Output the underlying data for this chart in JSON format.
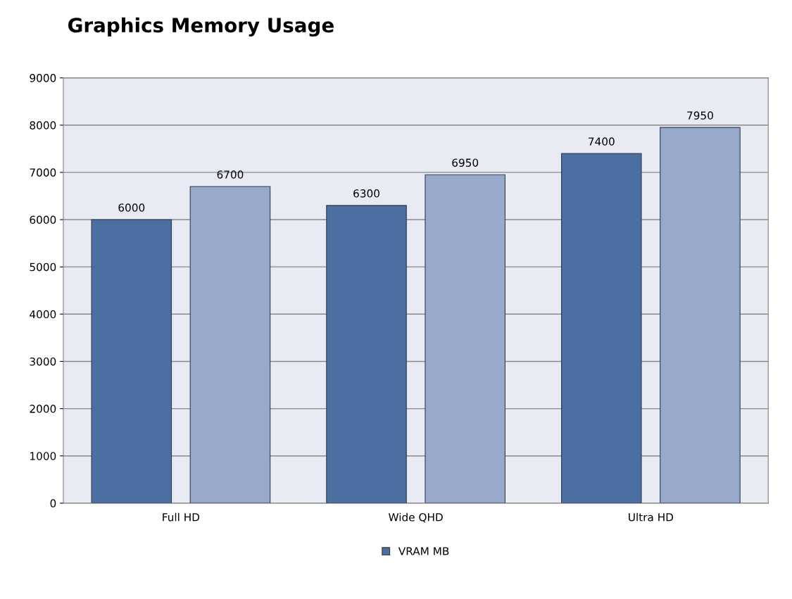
{
  "chart_data": {
    "type": "bar",
    "title": "Graphics Memory Usage",
    "categories": [
      "Full HD",
      "Wide QHD",
      "Ultra HD"
    ],
    "series": [
      {
        "name": "VRAM MB",
        "color": "#4a6fa0",
        "values": [
          6000,
          6300,
          7400
        ]
      },
      {
        "color": "#98a9cc",
        "values": [
          6700,
          6950,
          7950
        ]
      }
    ],
    "ylim": [
      0,
      9000
    ],
    "yticks": [
      0,
      1000,
      2000,
      3000,
      4000,
      5000,
      6000,
      7000,
      8000,
      9000
    ],
    "grid": "y",
    "legend": "bottom",
    "data_labels": true
  }
}
